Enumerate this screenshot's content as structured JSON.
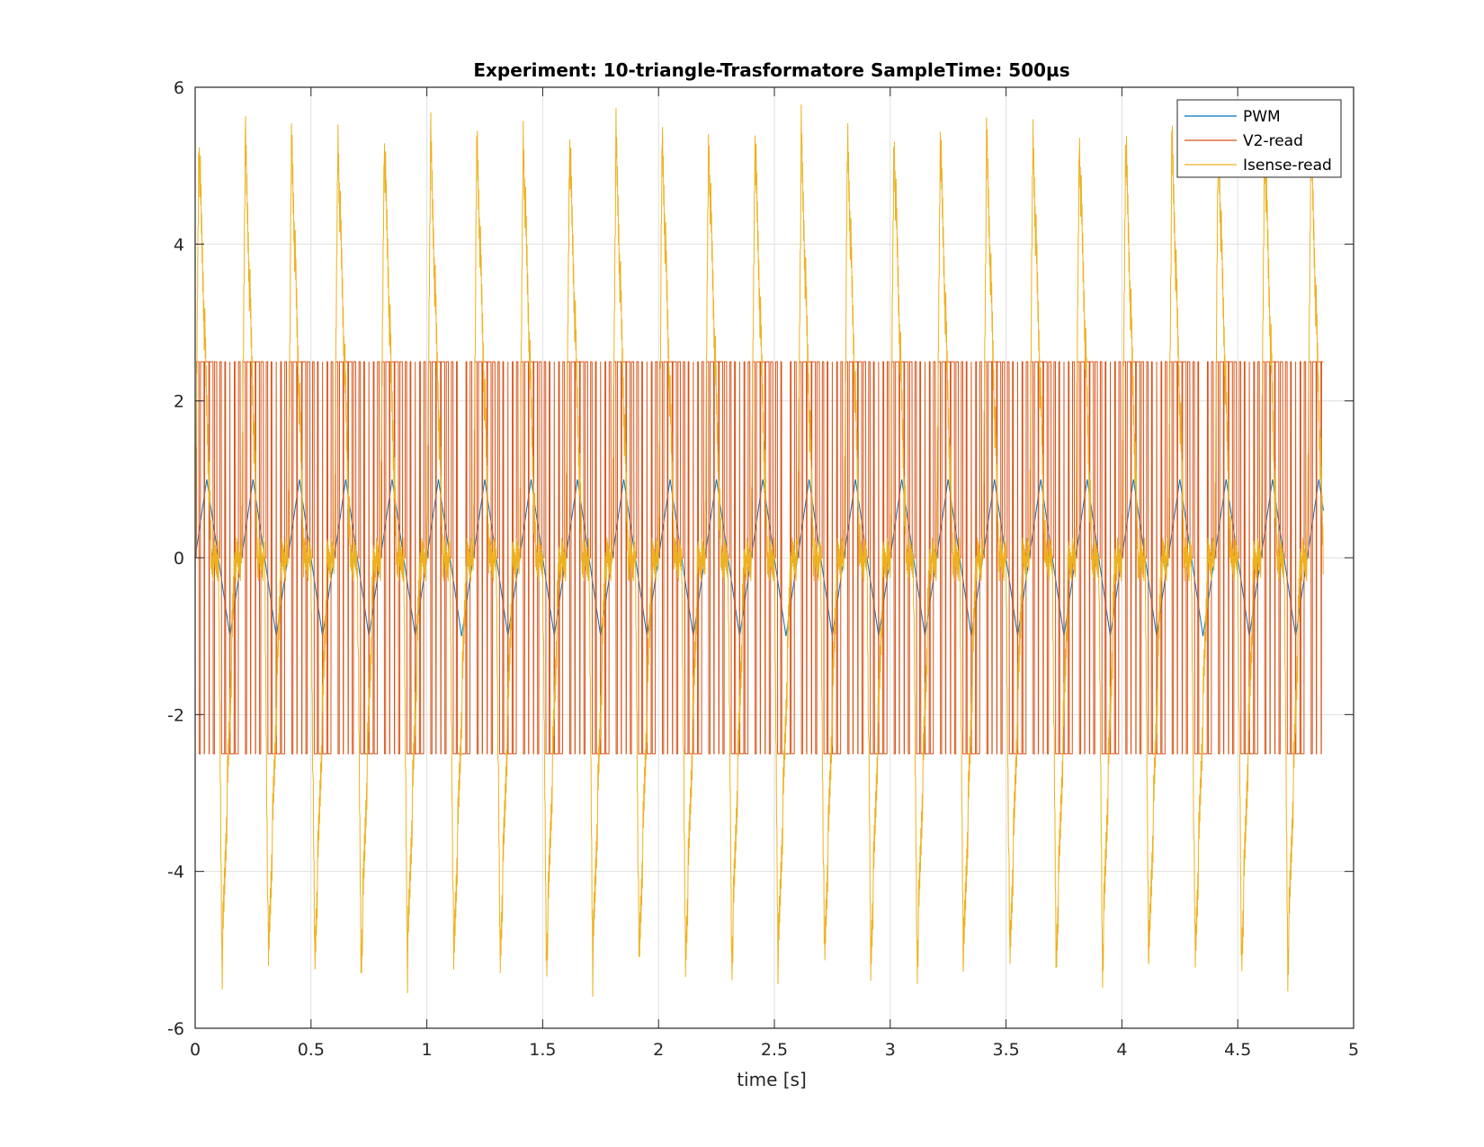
{
  "chart_data": {
    "type": "line",
    "title": "Experiment: 10-triangle-Trasformatore   SampleTime: 500µs",
    "xlabel": "time [s]",
    "ylabel": "",
    "xlim": [
      0,
      5
    ],
    "ylim": [
      -6,
      6
    ],
    "x_ticks": [
      "0",
      "0.5",
      "1",
      "1.5",
      "2",
      "2.5",
      "3",
      "3.5",
      "4",
      "4.5",
      "5"
    ],
    "y_ticks": [
      "-6",
      "-4",
      "-2",
      "0",
      "2",
      "4",
      "6"
    ],
    "grid": true,
    "legend_position": "top-right",
    "sample_time_s": 0.0005,
    "duration_s": 4.87,
    "series": [
      {
        "name": "PWM",
        "color": "#0072BD",
        "shape": "triangle",
        "period_s": 0.2,
        "amplitude": 1.0
      },
      {
        "name": "V2-read",
        "color": "#D95319",
        "shape": "square-pwm",
        "levels": [
          -2.5,
          0,
          2.5
        ],
        "period_s": 0.2
      },
      {
        "name": "Isense-read",
        "color": "#EDB120",
        "shape": "triangle-current",
        "period_s": 0.2,
        "max": 5.4,
        "min": -5.15
      }
    ]
  }
}
